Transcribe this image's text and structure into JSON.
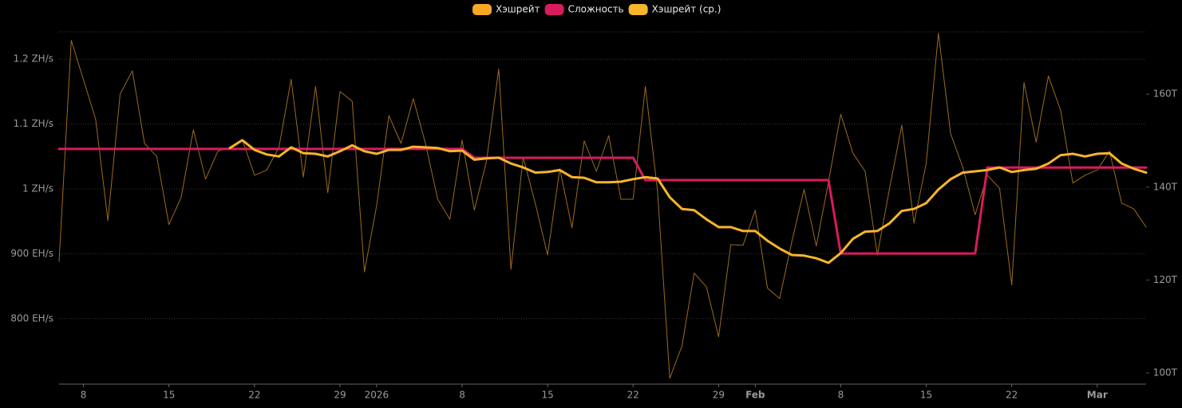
{
  "chart_data": {
    "type": "line",
    "categories": [
      null,
      null,
      "8",
      null,
      null,
      null,
      null,
      null,
      null,
      "15",
      null,
      null,
      null,
      null,
      null,
      null,
      "22",
      null,
      null,
      null,
      null,
      null,
      null,
      "29",
      null,
      null,
      "2026",
      null,
      null,
      null,
      null,
      null,
      null,
      "8",
      null,
      null,
      null,
      null,
      null,
      null,
      "15",
      null,
      null,
      null,
      null,
      null,
      null,
      "22",
      null,
      null,
      null,
      null,
      null,
      null,
      "29",
      null,
      null,
      "Feb",
      null,
      null,
      null,
      null,
      null,
      null,
      "8",
      null,
      null,
      null,
      null,
      null,
      null,
      "15",
      null,
      null,
      null,
      null,
      null,
      null,
      "22",
      null,
      null,
      null,
      null,
      null,
      null,
      "Mar",
      null,
      null,
      null,
      null
    ],
    "series": [
      {
        "name": "Хэшрейт",
        "color": "#f7a823",
        "line_color": "#9c6a1e",
        "values": [
          888,
          1229,
          1168,
          1107,
          951,
          1146,
          1182,
          1070,
          1050,
          945,
          987,
          1091,
          1015,
          1058,
          1064,
          1076,
          1021,
          1029,
          1064,
          1169,
          1018,
          1158,
          994,
          1150,
          1135,
          872,
          974,
          1113,
          1070,
          1139,
          1070,
          984,
          953,
          1075,
          967,
          1043,
          1185,
          876,
          1049,
          977,
          898,
          1031,
          940,
          1074,
          1027,
          1082,
          984,
          984,
          1158,
          996,
          708,
          758,
          870,
          849,
          772,
          914,
          913,
          967,
          847,
          831,
          919,
          999,
          912,
          1011,
          1115,
          1055,
          1027,
          898,
          1001,
          1098,
          947,
          1039,
          1240,
          1085,
          1033,
          960,
          1021,
          1001,
          852,
          1164,
          1072,
          1174,
          1121,
          1009,
          1021,
          1029,
          1058,
          978,
          969,
          941
        ]
      },
      {
        "name": "Сложность",
        "color": "#d81b5f",
        "axis": "y2",
        "values": [
          148.2,
          148.2,
          148.2,
          148.2,
          148.2,
          148.2,
          148.2,
          148.2,
          148.2,
          148.2,
          148.2,
          148.2,
          148.2,
          148.2,
          148.2,
          148.2,
          148.2,
          148.2,
          148.2,
          148.2,
          148.2,
          148.2,
          148.2,
          148.2,
          148.2,
          148.2,
          148.2,
          148.2,
          148.2,
          148.2,
          148.2,
          148.2,
          148.2,
          148.2,
          146.3,
          146.3,
          146.3,
          146.3,
          146.3,
          146.3,
          146.3,
          146.3,
          146.3,
          146.3,
          146.3,
          146.3,
          146.3,
          146.3,
          141.5,
          141.5,
          141.5,
          141.5,
          141.5,
          141.5,
          141.5,
          141.5,
          141.5,
          141.5,
          141.5,
          141.5,
          141.5,
          141.5,
          141.5,
          141.5,
          125.7,
          125.7,
          125.7,
          125.7,
          125.7,
          125.7,
          125.7,
          125.7,
          125.7,
          125.7,
          125.7,
          125.7,
          144.2,
          144.2,
          144.2,
          144.2,
          144.2,
          144.2,
          144.2,
          144.2,
          144.2,
          144.2,
          144.2,
          144.2,
          144.2,
          144.2
        ]
      },
      {
        "name": "Хэшрейт (ср.)",
        "color": "#f7b52a",
        "values": [
          null,
          null,
          null,
          null,
          null,
          null,
          null,
          null,
          null,
          null,
          null,
          null,
          null,
          null,
          1063,
          1075,
          1060,
          1053,
          1050,
          1064,
          1055,
          1054,
          1050,
          1058,
          1067,
          1058,
          1054,
          1060,
          1060,
          1065,
          1064,
          1063,
          1058,
          1059,
          1045,
          1047,
          1048,
          1039,
          1033,
          1025,
          1026,
          1029,
          1018,
          1017,
          1010,
          1010,
          1011,
          1015,
          1018,
          1016,
          987,
          969,
          967,
          953,
          941,
          941,
          935,
          935,
          920,
          908,
          898,
          897,
          893,
          886,
          901,
          923,
          934,
          935,
          947,
          966,
          969,
          978,
          999,
          1015,
          1025,
          1027,
          1029,
          1033,
          1026,
          1029,
          1031,
          1039,
          1052,
          1054,
          1050,
          1054,
          1055,
          1039,
          1031,
          1025
        ]
      }
    ],
    "ylim": [
      699,
      1242
    ],
    "yticks": [
      {
        "value": 800,
        "label": "800 EH/s"
      },
      {
        "value": 900,
        "label": "900 EH/s"
      },
      {
        "value": 1000,
        "label": "1 ZH/s"
      },
      {
        "value": 1100,
        "label": "1.1 ZH/s"
      },
      {
        "value": 1200,
        "label": "1.2 ZH/s"
      }
    ],
    "y2lim": [
      97.6,
      173.4
    ],
    "y2ticks": [
      {
        "value": 100,
        "label": "100T"
      },
      {
        "value": 120,
        "label": "120T"
      },
      {
        "value": 140,
        "label": "140T"
      },
      {
        "value": 160,
        "label": "160T"
      }
    ],
    "grid": true
  }
}
